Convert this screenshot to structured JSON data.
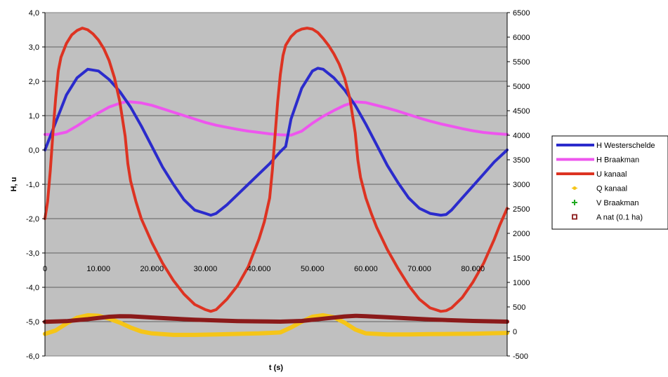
{
  "chart_data": {
    "type": "line",
    "title": "",
    "xlabel": "t (s)",
    "ylabel": "H, u",
    "xlim": [
      0,
      86400
    ],
    "ylim": [
      -6,
      4
    ],
    "y2lim": [
      -500,
      6500
    ],
    "x_ticks": [
      0,
      10000,
      20000,
      30000,
      40000,
      50000,
      60000,
      70000,
      80000
    ],
    "x_tick_labels": [
      "0",
      "10.000",
      "20.000",
      "30.000",
      "40.000",
      "50.000",
      "60.000",
      "70.000",
      "80.000"
    ],
    "y_ticks": [
      4,
      3,
      2,
      1,
      0,
      -1,
      -2,
      -3,
      -4,
      -5,
      -6
    ],
    "y_tick_labels": [
      "4,0",
      "3,0",
      "2,0",
      "1,0",
      "0,0",
      "-1,0",
      "-2,0",
      "-3,0",
      "-4,0",
      "-5,0",
      "-6,0"
    ],
    "y2_ticks": [
      6500,
      6000,
      5500,
      5000,
      4500,
      4000,
      3500,
      3000,
      2500,
      2000,
      1500,
      1000,
      500,
      0,
      -500
    ],
    "y2_tick_labels": [
      "6500",
      "6000",
      "5500",
      "5000",
      "4500",
      "4000",
      "3500",
      "3000",
      "2500",
      "2000",
      "1500",
      "1000",
      "500",
      "0",
      "-500"
    ],
    "grid": true,
    "legend_position": "right",
    "plot_background": "#c0c0c0",
    "series": [
      {
        "name": "H Westerschelde",
        "axis": "left",
        "color": "#2b2bcc",
        "style": "line",
        "x": [
          0,
          2000,
          4000,
          6000,
          8000,
          10000,
          12000,
          14000,
          16000,
          18000,
          20000,
          22000,
          24000,
          26000,
          28000,
          30000,
          31000,
          32000,
          34000,
          36000,
          38000,
          40000,
          42000,
          44000,
          45000,
          46000,
          48000,
          50000,
          51000,
          52000,
          54000,
          56000,
          58000,
          60000,
          62000,
          64000,
          66000,
          68000,
          70000,
          72000,
          74000,
          75000,
          76000,
          78000,
          80000,
          82000,
          84000,
          86400
        ],
        "y": [
          0.0,
          0.8,
          1.6,
          2.1,
          2.35,
          2.3,
          2.05,
          1.7,
          1.25,
          0.7,
          0.1,
          -0.5,
          -1.0,
          -1.45,
          -1.75,
          -1.85,
          -1.9,
          -1.85,
          -1.6,
          -1.3,
          -1.0,
          -0.7,
          -0.4,
          -0.05,
          0.1,
          0.9,
          1.8,
          2.3,
          2.38,
          2.35,
          2.1,
          1.75,
          1.3,
          0.75,
          0.15,
          -0.45,
          -0.95,
          -1.4,
          -1.7,
          -1.85,
          -1.9,
          -1.88,
          -1.75,
          -1.4,
          -1.05,
          -0.7,
          -0.35,
          0.0
        ]
      },
      {
        "name": "H Braakman",
        "axis": "left",
        "color": "#ee55ee",
        "style": "line",
        "x": [
          0,
          2000,
          4000,
          6000,
          8000,
          10000,
          12000,
          14000,
          15000,
          16000,
          18000,
          20000,
          22000,
          24000,
          26000,
          28000,
          30000,
          32000,
          34000,
          36000,
          38000,
          40000,
          42000,
          44000,
          46000,
          48000,
          50000,
          52000,
          54000,
          56000,
          58000,
          60000,
          62000,
          64000,
          66000,
          68000,
          70000,
          72000,
          74000,
          76000,
          78000,
          80000,
          82000,
          84000,
          86400
        ],
        "y": [
          0.45,
          0.45,
          0.52,
          0.7,
          0.9,
          1.08,
          1.25,
          1.36,
          1.4,
          1.4,
          1.37,
          1.3,
          1.2,
          1.1,
          1.0,
          0.9,
          0.8,
          0.72,
          0.66,
          0.6,
          0.55,
          0.51,
          0.47,
          0.44,
          0.43,
          0.55,
          0.78,
          0.98,
          1.15,
          1.3,
          1.4,
          1.38,
          1.3,
          1.22,
          1.13,
          1.03,
          0.93,
          0.84,
          0.76,
          0.69,
          0.62,
          0.56,
          0.51,
          0.48,
          0.45
        ]
      },
      {
        "name": "U kanaal",
        "axis": "left",
        "color": "#dd3322",
        "style": "line",
        "x": [
          0,
          500,
          1000,
          1500,
          2000,
          2500,
          3000,
          4000,
          5000,
          6000,
          7000,
          8000,
          9000,
          10000,
          11000,
          12000,
          13000,
          14000,
          15000,
          15500,
          16000,
          17000,
          18000,
          20000,
          22000,
          24000,
          26000,
          28000,
          30000,
          31000,
          32000,
          34000,
          36000,
          38000,
          40000,
          41000,
          42000,
          42500,
          43000,
          43500,
          44000,
          44500,
          45000,
          46000,
          47000,
          48000,
          49000,
          50000,
          51000,
          52000,
          53000,
          54000,
          55000,
          56000,
          57000,
          58000,
          58500,
          59000,
          60000,
          61000,
          62000,
          64000,
          66000,
          68000,
          70000,
          72000,
          74000,
          75000,
          76000,
          78000,
          80000,
          82000,
          84000,
          85000,
          86400
        ],
        "y": [
          -2.0,
          -1.5,
          -0.6,
          0.5,
          1.5,
          2.3,
          2.7,
          3.1,
          3.35,
          3.48,
          3.55,
          3.5,
          3.38,
          3.2,
          2.95,
          2.6,
          2.1,
          1.4,
          0.4,
          -0.4,
          -0.9,
          -1.5,
          -2.0,
          -2.7,
          -3.3,
          -3.8,
          -4.2,
          -4.5,
          -4.65,
          -4.7,
          -4.65,
          -4.35,
          -3.95,
          -3.4,
          -2.6,
          -2.1,
          -1.4,
          -0.6,
          0.4,
          1.4,
          2.2,
          2.75,
          3.05,
          3.3,
          3.45,
          3.52,
          3.55,
          3.52,
          3.42,
          3.25,
          3.05,
          2.8,
          2.5,
          2.1,
          1.5,
          0.5,
          -0.3,
          -0.8,
          -1.4,
          -1.85,
          -2.25,
          -2.9,
          -3.45,
          -3.95,
          -4.35,
          -4.6,
          -4.7,
          -4.68,
          -4.6,
          -4.3,
          -3.85,
          -3.3,
          -2.6,
          -2.2,
          -1.7
        ]
      },
      {
        "name": "Q kanaal",
        "axis": "right",
        "color": "#f5c518",
        "style": "line",
        "x": [
          0,
          2000,
          4000,
          6000,
          8000,
          10000,
          12000,
          14000,
          16000,
          18000,
          20000,
          24000,
          28000,
          32000,
          36000,
          40000,
          42000,
          44000,
          46000,
          48000,
          50000,
          52000,
          54000,
          56000,
          58000,
          60000,
          64000,
          68000,
          72000,
          76000,
          80000,
          84000,
          86400
        ],
        "y": [
          -50,
          20,
          160,
          280,
          330,
          320,
          260,
          180,
          80,
          0,
          -40,
          -70,
          -70,
          -60,
          -50,
          -40,
          -30,
          -20,
          80,
          200,
          300,
          330,
          290,
          180,
          40,
          -40,
          -60,
          -60,
          -55,
          -50,
          -45,
          -35,
          -30
        ]
      },
      {
        "name": "V Braakman",
        "axis": "right",
        "color": "#22aa22",
        "style": "marker",
        "x": [],
        "y": []
      },
      {
        "name": "A nat (0.1 ha)",
        "axis": "right",
        "color": "#8b1a1a",
        "style": "line",
        "x": [
          0,
          4000,
          8000,
          12000,
          14000,
          16000,
          20000,
          24000,
          28000,
          32000,
          36000,
          40000,
          44000,
          48000,
          52000,
          56000,
          58000,
          60000,
          64000,
          68000,
          72000,
          76000,
          80000,
          84000,
          86400
        ],
        "y": [
          195,
          210,
          250,
          300,
          310,
          308,
          285,
          260,
          240,
          225,
          212,
          205,
          200,
          215,
          260,
          305,
          318,
          312,
          290,
          265,
          245,
          228,
          215,
          205,
          200
        ]
      }
    ]
  }
}
